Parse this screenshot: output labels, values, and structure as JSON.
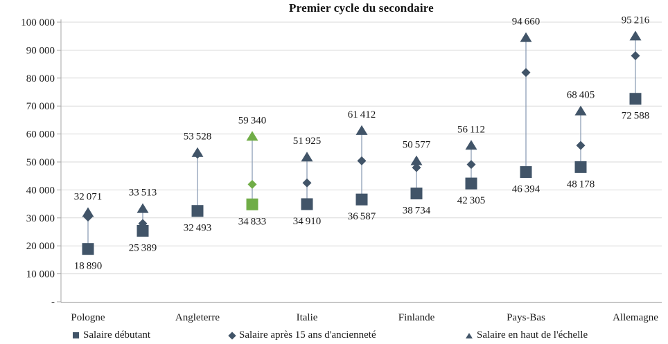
{
  "chart_data": {
    "type": "scatter",
    "title": "Premier cycle du secondaire",
    "subtitle": "",
    "categories": [
      "Pologne",
      "",
      "Angleterre",
      "",
      "Italie",
      "",
      "Finlande",
      "",
      "Pays-Bas",
      "",
      "Allemagne"
    ],
    "series": [
      {
        "name": "Salaire débutant",
        "marker": "square",
        "labels_shown": true,
        "values": [
          18890,
          25389,
          32493,
          34833,
          34910,
          36587,
          38734,
          42305,
          46394,
          48178,
          72588
        ]
      },
      {
        "name": "Salaire après 15 ans d'ancienneté",
        "marker": "diamond",
        "labels_shown": false,
        "values": [
          30300,
          28000,
          52800,
          42000,
          42500,
          50400,
          48000,
          49100,
          82000,
          55900,
          88000
        ]
      },
      {
        "name": "Salaire en haut de l'échelle",
        "marker": "triangle",
        "labels_shown": true,
        "values": [
          32071,
          33513,
          53528,
          59340,
          51925,
          61412,
          50577,
          56112,
          94660,
          68405,
          95216
        ]
      }
    ],
    "highlight_index": 3,
    "ylim": [
      0,
      100000
    ],
    "ytick_step": 10000,
    "ytick_labels": [
      "-",
      "10 000",
      "20 000",
      "30 000",
      "40 000",
      "50 000",
      "60 000",
      "70 000",
      "80 000",
      "90 000",
      "100 000"
    ],
    "grid": "horizontal",
    "legend_position": "bottom",
    "colors": {
      "marker": "#415468",
      "highlight": "#70AD47",
      "connector": "#8497B0",
      "gridline": "#D9D9D9",
      "axis": "#A6A6A6",
      "text": "#1a1a1a"
    }
  }
}
